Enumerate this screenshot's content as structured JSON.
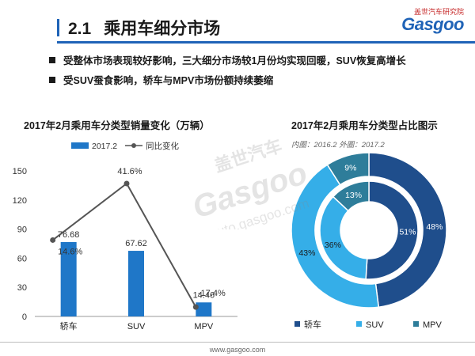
{
  "header": {
    "section_number": "2.1",
    "section_title": "乘用车细分市场",
    "logo_top": "盖世汽车研究院",
    "logo_word": "Gasgoo"
  },
  "bullets": [
    "受整体市场表现较好影响，三大细分市场较1月份均实现回暖，SUV恢复高增长",
    "受SUV蚕食影响，轿车与MPV市场份额持续萎缩"
  ],
  "watermark": {
    "cn": "盖世汽车",
    "word": "Gasgoo",
    "url": "auto.gasgoo.com"
  },
  "footer": {
    "url": "www.gasgoo.com"
  },
  "colors": {
    "accent": "#1f63b7",
    "sedan": "#1f4e8c",
    "suv": "#35aee8",
    "mpv": "#2e7d9a",
    "bar": "#1f77c8",
    "line": "#555555"
  },
  "chart_data": [
    {
      "type": "bar",
      "title": "2017年2月乘用车分类型销量变化（万辆）",
      "categories": [
        "轿车",
        "SUV",
        "MPV"
      ],
      "series": [
        {
          "name": "2017.2",
          "type": "bar",
          "values": [
            76.68,
            67.62,
            14.46
          ],
          "labels": [
            "76.68",
            "67.62",
            "14.46"
          ]
        },
        {
          "name": "同比变化",
          "type": "line",
          "values": [
            14.6,
            41.6,
            -17.4
          ],
          "labels": [
            "14.6%",
            "41.6%",
            "-17.4%"
          ]
        }
      ],
      "ylim": [
        0,
        150
      ],
      "yticks": [
        "0",
        "30",
        "60",
        "90",
        "120",
        "150"
      ],
      "line_range": [
        -20,
        45
      ]
    },
    {
      "type": "pie",
      "title": "2017年2月乘用车分类型占比图示",
      "subtitle": "内圈：2016.2    外圈：2017.2",
      "categories": [
        "轿车",
        "SUV",
        "MPV"
      ],
      "inner": {
        "name": "2016.2",
        "values": [
          51,
          36,
          13
        ],
        "labels": [
          "51%",
          "36%",
          "13%"
        ]
      },
      "outer": {
        "name": "2017.2",
        "values": [
          48,
          43,
          9
        ],
        "labels": [
          "48%",
          "43%",
          "9%"
        ]
      },
      "legend": "bottom"
    }
  ]
}
